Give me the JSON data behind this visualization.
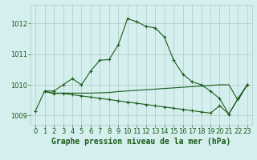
{
  "title": "Graphe pression niveau de la mer (hPa)",
  "background_color": "#d5eeee",
  "grid_color": "#b0c8c8",
  "line_color": "#1a5c1a",
  "label_color": "#1a5c1a",
  "xlim": [
    -0.5,
    23.5
  ],
  "ylim": [
    1008.7,
    1012.6
  ],
  "yticks": [
    1009,
    1010,
    1011,
    1012
  ],
  "xticks": [
    0,
    1,
    2,
    3,
    4,
    5,
    6,
    7,
    8,
    9,
    10,
    11,
    12,
    13,
    14,
    15,
    16,
    17,
    18,
    19,
    20,
    21,
    22,
    23
  ],
  "tick_fontsize": 6,
  "title_fontsize": 7,
  "series1_x": [
    0,
    1,
    2,
    3,
    4,
    5,
    6,
    7,
    8,
    9,
    10,
    11,
    12,
    13,
    14,
    15,
    16,
    17,
    18,
    19,
    20,
    21,
    22,
    23
  ],
  "series1_y": [
    1009.15,
    1009.8,
    1009.8,
    1010.0,
    1010.2,
    1010.0,
    1010.45,
    1010.8,
    1010.82,
    1011.3,
    1012.15,
    1012.05,
    1011.9,
    1011.85,
    1011.55,
    1010.8,
    1010.35,
    1010.1,
    1010.0,
    1009.8,
    1009.55,
    1009.05,
    1009.55,
    1010.0
  ],
  "series2_x": [
    1,
    2,
    3,
    4,
    5,
    6,
    7,
    8,
    9,
    10,
    11,
    12,
    13,
    14,
    15,
    16,
    17,
    18,
    19,
    20,
    21,
    22,
    23
  ],
  "series2_y": [
    1009.78,
    1009.72,
    1009.72,
    1009.68,
    1009.64,
    1009.6,
    1009.56,
    1009.52,
    1009.48,
    1009.44,
    1009.4,
    1009.36,
    1009.32,
    1009.28,
    1009.24,
    1009.2,
    1009.16,
    1009.12,
    1009.08,
    1009.32,
    1009.05,
    1009.55,
    1010.0
  ],
  "series3_x": [
    1,
    2,
    3,
    4,
    5,
    6,
    7,
    8,
    9,
    10,
    11,
    12,
    13,
    14,
    15,
    16,
    17,
    18,
    19,
    20,
    21,
    22,
    23
  ],
  "series3_y": [
    1009.78,
    1009.73,
    1009.73,
    1009.73,
    1009.73,
    1009.73,
    1009.74,
    1009.75,
    1009.78,
    1009.8,
    1009.82,
    1009.84,
    1009.86,
    1009.88,
    1009.9,
    1009.92,
    1009.94,
    1009.96,
    1009.98,
    1010.0,
    1010.0,
    1009.5,
    1010.0
  ]
}
